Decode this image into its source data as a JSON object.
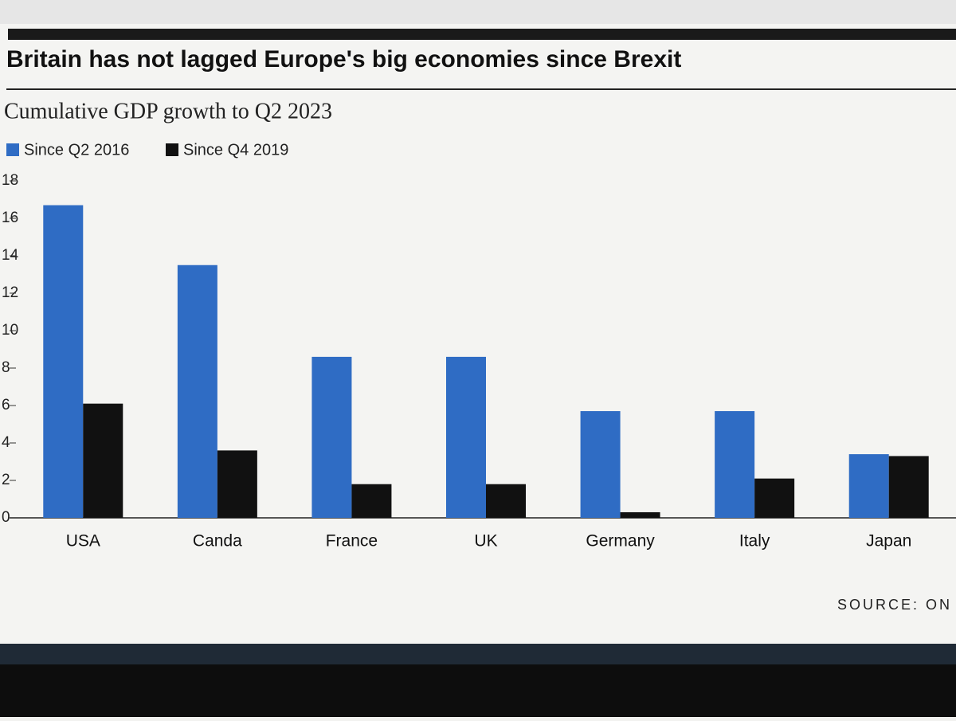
{
  "chart_data": {
    "type": "bar",
    "title": "Britain has not lagged Europe's big economies since Brexit",
    "subtitle": "Cumulative GDP growth to Q2 2023",
    "categories": [
      "USA",
      "Canda",
      "France",
      "UK",
      "Germany",
      "Italy",
      "Japan"
    ],
    "series": [
      {
        "name": "Since Q2 2016",
        "color": "#2f6cc4",
        "values": [
          16.7,
          13.5,
          8.6,
          8.6,
          5.7,
          5.7,
          3.4
        ]
      },
      {
        "name": "Since Q4 2019",
        "color": "#111111",
        "values": [
          6.1,
          3.6,
          1.8,
          1.8,
          0.3,
          2.1,
          3.3
        ]
      }
    ],
    "ylim": [
      0,
      18
    ],
    "yticks": [
      0,
      2,
      4,
      6,
      8,
      10,
      12,
      14,
      16,
      18
    ],
    "source": "SOURCE: ON"
  }
}
